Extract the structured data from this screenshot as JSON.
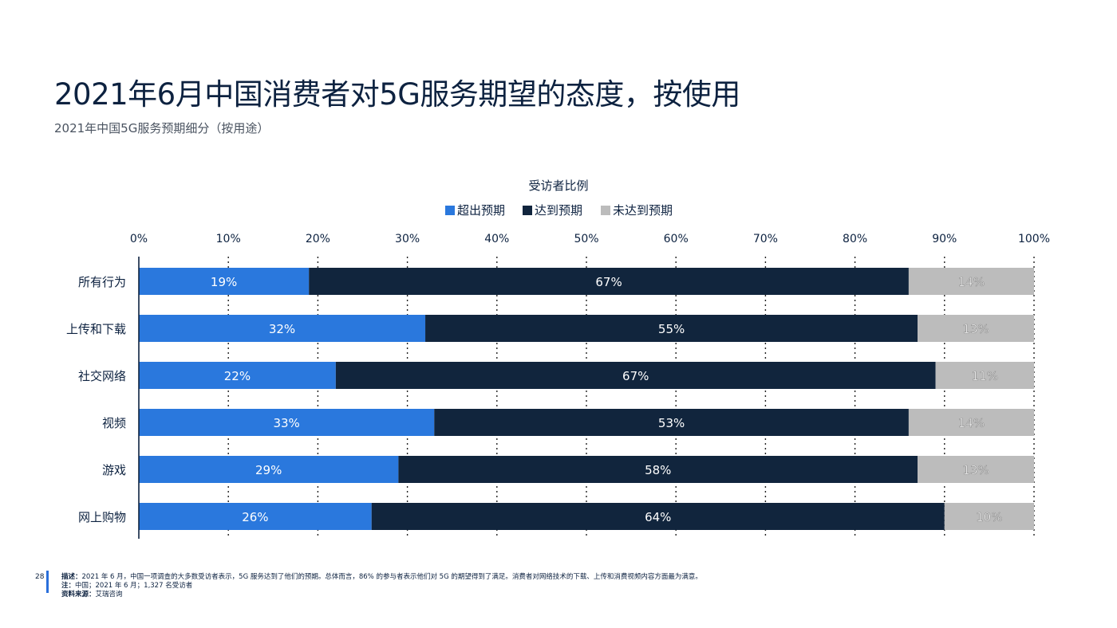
{
  "page": {
    "title": "2021年6月中国消费者对5G服务期望的态度，按使用",
    "subtitle": "2021年中国5G服务预期细分（按用途）",
    "page_number": "28",
    "footnotes": [
      {
        "label": "描述：",
        "text": "2021 年 6 月，中国一项调查的大多数受访者表示，5G 服务达到了他们的预期。总体而言，86% 的参与者表示他们对 5G 的期望得到了满足。消费者对网络技术的下载、上传和消费视频内容方面最为满意。"
      },
      {
        "label": "注：",
        "text": "中国；2021 年 6 月；1,327 名受访者"
      },
      {
        "label": "资料来源：",
        "text": "艾瑞咨询"
      }
    ]
  },
  "colors": {
    "exceeded": "#2a78dd",
    "met": "#11253d",
    "not_met": "#bcbcbc",
    "title": "#0d2240"
  },
  "chart_data": {
    "type": "bar",
    "orientation": "horizontal",
    "stacked": true,
    "title": "受访者比例",
    "categories": [
      "所有行为",
      "上传和下载",
      "社交网络",
      "视频",
      "游戏",
      "网上购物"
    ],
    "series": [
      {
        "name": "超出预期",
        "values": [
          19,
          32,
          22,
          33,
          29,
          26
        ]
      },
      {
        "name": "达到预期",
        "values": [
          67,
          55,
          67,
          53,
          58,
          64
        ]
      },
      {
        "name": "未达到预期",
        "values": [
          14,
          13,
          11,
          14,
          13,
          10
        ]
      }
    ],
    "x_ticks": [
      "0%",
      "10%",
      "20%",
      "30%",
      "40%",
      "50%",
      "60%",
      "70%",
      "80%",
      "90%",
      "100%"
    ],
    "xlim": [
      0,
      100
    ],
    "grid": "vertical dotted",
    "legend_position": "top-center",
    "data_labels": [
      [
        "19%",
        "67%",
        "14%"
      ],
      [
        "32%",
        "55%",
        "13%"
      ],
      [
        "22%",
        "67%",
        "11%"
      ],
      [
        "33%",
        "53%",
        "14%"
      ],
      [
        "29%",
        "58%",
        "13%"
      ],
      [
        "26%",
        "64%",
        "10%"
      ]
    ]
  }
}
